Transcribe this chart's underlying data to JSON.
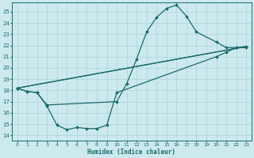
{
  "xlabel": "Humidex (Indice chaleur)",
  "xlim": [
    -0.5,
    23.5
  ],
  "ylim": [
    13.5,
    25.8
  ],
  "xticks": [
    0,
    1,
    2,
    3,
    4,
    5,
    6,
    7,
    8,
    9,
    10,
    11,
    12,
    13,
    14,
    15,
    16,
    17,
    18,
    19,
    20,
    21,
    22,
    23
  ],
  "yticks": [
    14,
    15,
    16,
    17,
    18,
    19,
    20,
    21,
    22,
    23,
    24,
    25
  ],
  "bg_color": "#cce9ee",
  "grid_color": "#aad4da",
  "line_color": "#1a6b6b",
  "line1_x": [
    0,
    1,
    2,
    3,
    10,
    11,
    12,
    13,
    14,
    15,
    16,
    17,
    18,
    20,
    21,
    22,
    23
  ],
  "line1_y": [
    18.2,
    17.9,
    17.8,
    16.7,
    17.0,
    18.6,
    20.8,
    23.2,
    24.5,
    25.3,
    25.6,
    24.6,
    23.2,
    22.3,
    21.8,
    21.8,
    21.8
  ],
  "line2_x": [
    0,
    23
  ],
  "line2_y": [
    18.2,
    21.9
  ],
  "line3_x": [
    0,
    1,
    2,
    3,
    4,
    5,
    6,
    7,
    8,
    9,
    10,
    20,
    21,
    22,
    23
  ],
  "line3_y": [
    18.2,
    17.9,
    17.8,
    16.6,
    14.9,
    14.5,
    14.7,
    14.6,
    14.6,
    14.9,
    17.8,
    21.0,
    21.4,
    21.8,
    21.9
  ],
  "line4_x": [
    0,
    23
  ],
  "line4_y": [
    18.2,
    21.9
  ],
  "marker_size": 2.0,
  "linewidth": 0.9
}
